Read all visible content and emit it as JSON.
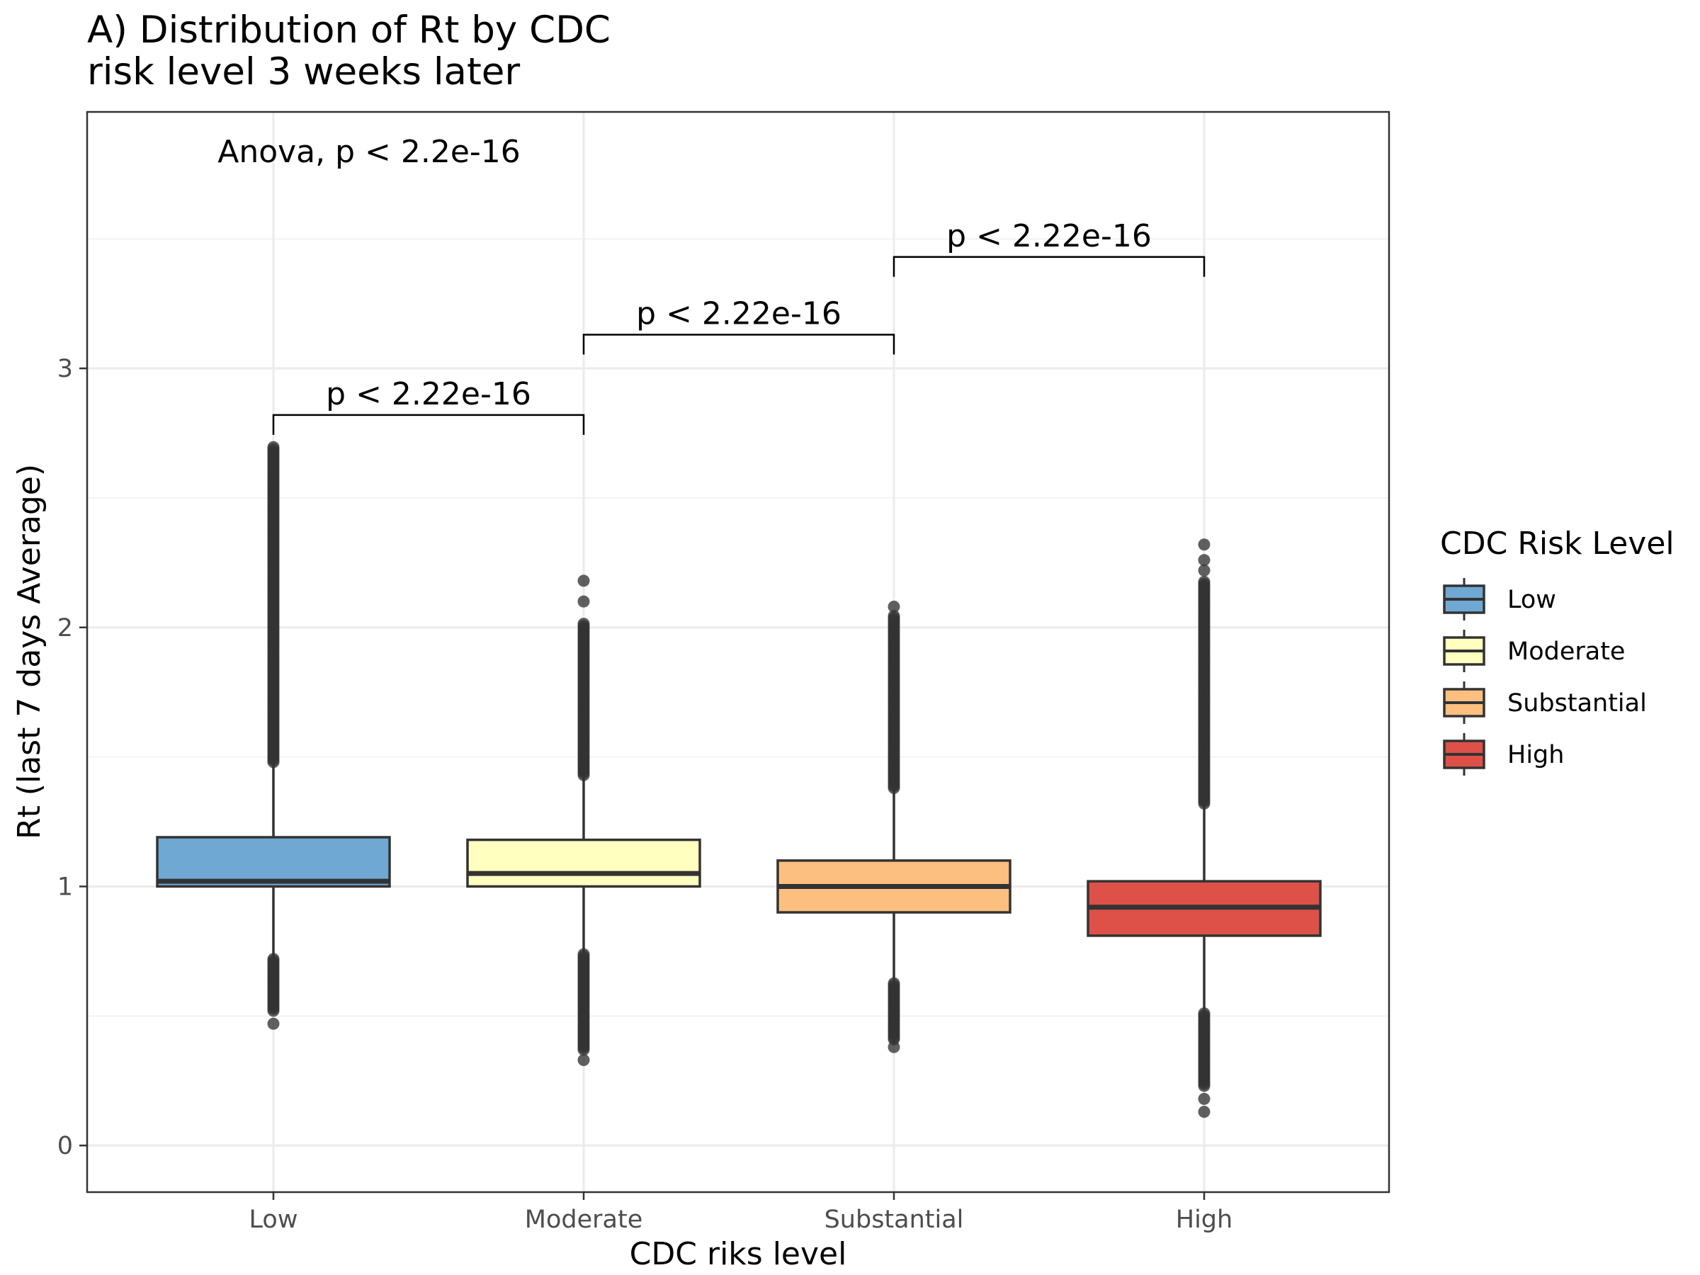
{
  "chart_data": {
    "type": "box",
    "title": [
      "A) Distribution of Rt by CDC",
      "risk level 3 weeks later"
    ],
    "xlabel": "CDC riks level",
    "ylabel": "Rt (last 7 days Average)",
    "ylim": [
      -0.18,
      3.99
    ],
    "yticks": [
      0,
      1,
      2,
      3
    ],
    "ytick_labels": [
      "0",
      "1",
      "2",
      "3"
    ],
    "grid": true,
    "categories": [
      "Low",
      "Moderate",
      "Substantial",
      "High"
    ],
    "colors": [
      "#6fa8d2",
      "#ffffc0",
      "#fdbf7f",
      "#dd5148"
    ],
    "boxes": [
      {
        "category": "Low",
        "q1": 1.0,
        "median": 1.02,
        "q3": 1.19,
        "whisker_low": 0.72,
        "whisker_high": 1.48,
        "outliers_low_range": [
          0.52,
          0.72
        ],
        "outliers_high_range": [
          1.48,
          2.7
        ],
        "extra_outliers": [
          0.47
        ]
      },
      {
        "category": "Moderate",
        "q1": 1.0,
        "median": 1.05,
        "q3": 1.18,
        "whisker_low": 0.74,
        "whisker_high": 1.43,
        "outliers_low_range": [
          0.37,
          0.74
        ],
        "outliers_high_range": [
          1.43,
          2.02
        ],
        "extra_outliers": [
          0.33,
          2.1,
          2.18
        ]
      },
      {
        "category": "Substantial",
        "q1": 0.9,
        "median": 1.0,
        "q3": 1.1,
        "whisker_low": 0.63,
        "whisker_high": 1.38,
        "outliers_low_range": [
          0.41,
          0.63
        ],
        "outliers_high_range": [
          1.38,
          2.05
        ],
        "extra_outliers": [
          0.38,
          2.08
        ]
      },
      {
        "category": "High",
        "q1": 0.81,
        "median": 0.92,
        "q3": 1.02,
        "whisker_low": 0.51,
        "whisker_high": 1.32,
        "outliers_low_range": [
          0.23,
          0.51
        ],
        "outliers_high_range": [
          1.32,
          2.18
        ],
        "extra_outliers": [
          0.13,
          0.18,
          2.22,
          2.26,
          2.32
        ]
      }
    ],
    "comparisons": [
      {
        "from": "Low",
        "to": "Moderate",
        "y": 2.82,
        "label": "p < 2.22e-16"
      },
      {
        "from": "Moderate",
        "to": "Substantial",
        "y": 3.13,
        "label": "p < 2.22e-16"
      },
      {
        "from": "Substantial",
        "to": "High",
        "y": 3.43,
        "label": "p < 2.22e-16"
      }
    ],
    "annotation": {
      "text": "Anova, p < 2.2e-16",
      "x": "Low",
      "y": 3.84
    },
    "legend": {
      "title": "CDC Risk Level",
      "placement": "right",
      "entries": [
        "Low",
        "Moderate",
        "Substantial",
        "High"
      ]
    }
  }
}
